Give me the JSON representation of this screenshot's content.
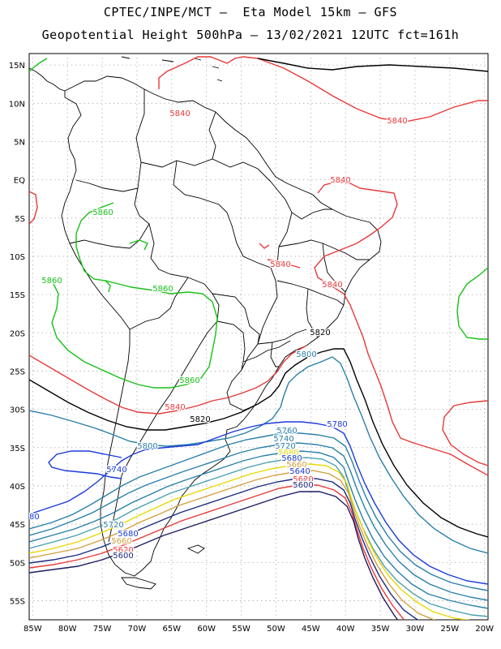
{
  "header": {
    "line1": "CPTEC/INPE/MCT –  Eta Model 15km – GFS",
    "line2": "Geopotential Height 500hPa – 13/02/2021 12UTC fct=161h"
  },
  "lat_labels": [
    "15N",
    "10N",
    "5N",
    "EQ",
    "5S",
    "10S",
    "15S",
    "20S",
    "25S",
    "30S",
    "35S",
    "40S",
    "45S",
    "50S",
    "55S"
  ],
  "lon_labels": [
    "85W",
    "80W",
    "75W",
    "70W",
    "65W",
    "60W",
    "55W",
    "50W",
    "45W",
    "40W",
    "35W",
    "30W",
    "25W",
    "20W"
  ],
  "contour_labels": [
    {
      "text": "5840",
      "color": "#e8393a"
    },
    {
      "text": "5840",
      "color": "#e8393a"
    },
    {
      "text": "5840",
      "color": "#e8393a"
    },
    {
      "text": "5840",
      "color": "#e8393a"
    },
    {
      "text": "5840",
      "color": "#e8393a"
    },
    {
      "text": "5840",
      "color": "#e8393a"
    },
    {
      "text": "5860",
      "color": "#18c018"
    },
    {
      "text": "5860",
      "color": "#18c018"
    },
    {
      "text": "5860",
      "color": "#18c018"
    },
    {
      "text": "5860",
      "color": "#18c018"
    },
    {
      "text": "5820",
      "color": "#000000"
    },
    {
      "text": "5820",
      "color": "#000000"
    },
    {
      "text": "5800",
      "color": "#2a7fa8"
    },
    {
      "text": "5800",
      "color": "#2a7fa8"
    },
    {
      "text": "5780",
      "color": "#1c3ad8"
    },
    {
      "text": "5740",
      "color": "#1c3ad8"
    },
    {
      "text": "5780",
      "color": "#1c3ad8"
    },
    {
      "text": "5760",
      "color": "#2a7fa8"
    },
    {
      "text": "5740",
      "color": "#2a7fa8"
    },
    {
      "text": "5720",
      "color": "#2a7fa8"
    },
    {
      "text": "5680",
      "color": "#e8d800"
    },
    {
      "text": "5680",
      "color": "#1c3ad8"
    },
    {
      "text": "5660",
      "color": "#d4a040"
    },
    {
      "text": "5640",
      "color": "#1c3ad8"
    },
    {
      "text": "5620",
      "color": "#e8393a"
    },
    {
      "text": "5600",
      "color": "#1c2a80"
    },
    {
      "text": "5720",
      "color": "#2a7fa8"
    },
    {
      "text": "5680",
      "color": "#1c3ad8"
    },
    {
      "text": "5660",
      "color": "#d4a040"
    },
    {
      "text": "5620",
      "color": "#e8393a"
    },
    {
      "text": "5600",
      "color": "#1c2a80"
    }
  ]
}
